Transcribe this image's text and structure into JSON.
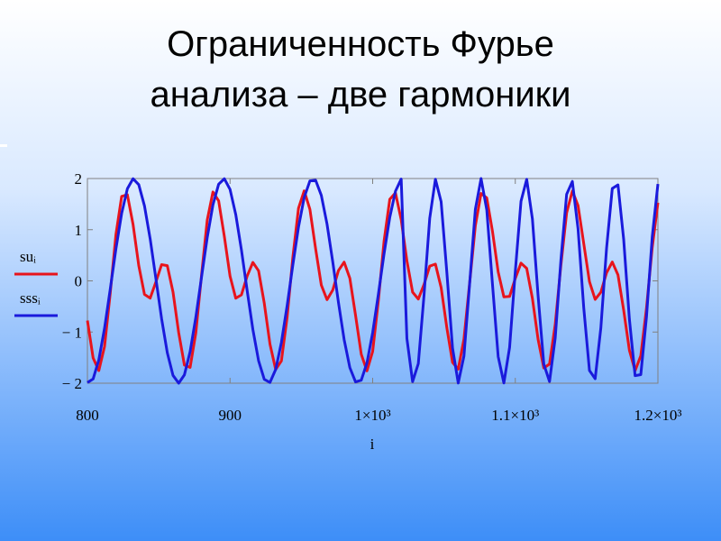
{
  "chart_data": {
    "type": "line",
    "title": [
      "Ограниченность Фурье",
      "анализа – две гармоники"
    ],
    "x_label": "i",
    "x": [
      800,
      804,
      808,
      812,
      816,
      820,
      824,
      828,
      832,
      836,
      840,
      844,
      848,
      852,
      856,
      860,
      864,
      868,
      872,
      876,
      880,
      884,
      888,
      892,
      896,
      900,
      904,
      908,
      912,
      916,
      920,
      924,
      928,
      932,
      936,
      940,
      944,
      948,
      952,
      956,
      960,
      964,
      968,
      972,
      976,
      980,
      984,
      988,
      992,
      996,
      1000,
      1004,
      1008,
      1012,
      1016,
      1020,
      1024,
      1028,
      1032,
      1036,
      1040,
      1044,
      1048,
      1052,
      1056,
      1060,
      1064,
      1068,
      1072,
      1076,
      1080,
      1084,
      1088,
      1092,
      1096,
      1100,
      1104,
      1108,
      1112,
      1116,
      1120,
      1124,
      1128,
      1132,
      1136,
      1140,
      1144,
      1148,
      1152,
      1156,
      1160,
      1164,
      1168,
      1172,
      1176,
      1180,
      1184,
      1188,
      1192,
      1196,
      1200
    ],
    "series": [
      {
        "name": "suᵢ",
        "color": "#e8141c",
        "values": [
          -0.775,
          -1.506,
          -1.753,
          -1.283,
          -0.242,
          0.909,
          1.65,
          1.685,
          1.102,
          0.299,
          -0.264,
          -0.338,
          -0.022,
          0.317,
          0.298,
          -0.216,
          -1.013,
          -1.645,
          -1.691,
          -1.021,
          0.108,
          1.188,
          1.737,
          1.565,
          0.868,
          0.092,
          -0.339,
          -0.273,
          0.094,
          0.361,
          0.197,
          -0.437,
          -1.237,
          -1.732,
          -1.565,
          -0.719,
          0.454,
          1.419,
          1.76,
          1.398,
          0.627,
          -0.083,
          -0.368,
          -0.181,
          0.201,
          0.366,
          0.051,
          -0.674,
          -1.434,
          -1.76,
          -1.378,
          -0.387,
          0.781,
          1.595,
          1.72,
          1.195,
          0.392,
          -0.22,
          -0.355,
          -0.071,
          0.288,
          0.328,
          -0.13,
          -0.915,
          -1.592,
          -1.725,
          -1.137,
          -0.039,
          1.077,
          1.708,
          1.622,
          0.968,
          0.175,
          -0.313,
          -0.304,
          0.046,
          0.347,
          0.245,
          -0.342,
          -1.146,
          -1.703,
          -1.625,
          -0.85,
          0.31,
          1.329,
          1.758,
          1.473,
          0.728,
          -0.014,
          -0.362,
          -0.222,
          0.158,
          0.369,
          0.117,
          -0.574,
          -1.356,
          -1.756,
          -1.463,
          -0.528,
          0.647,
          1.528
        ]
      },
      {
        "name": "sssᵢ",
        "color": "#1a1adc",
        "values": [
          -1.988,
          -1.917,
          -1.543,
          -0.926,
          -0.162,
          0.627,
          1.318,
          1.799,
          1.997,
          1.88,
          1.466,
          0.82,
          0.045,
          -0.737,
          -1.403,
          -1.847,
          -2.0,
          -1.837,
          -1.384,
          -0.712,
          0.072,
          0.845,
          1.484,
          1.889,
          1.996,
          1.788,
          1.297,
          0.602,
          -0.189,
          -0.949,
          -1.56,
          -1.924,
          -1.985,
          -1.732,
          -1.205,
          -0.489,
          0.305,
          1.051,
          1.631,
          1.953,
          1.967,
          1.671,
          1.11,
          0.375,
          -0.42,
          -1.148,
          -1.696,
          -1.975,
          -1.942,
          -1.603,
          -1.011,
          -0.259,
          0.533,
          1.242,
          1.754,
          1.99,
          -1.127,
          -1.97,
          -1.618,
          -0.285,
          1.221,
          1.987,
          1.547,
          0.169,
          -1.312,
          -1.997,
          -1.471,
          -0.052,
          1.398,
          2.0,
          1.389,
          -0.065,
          -1.479,
          -1.996,
          -1.302,
          0.182,
          1.555,
          1.985,
          1.211,
          -0.298,
          -1.627,
          -1.968,
          -1.116,
          0.413,
          1.692,
          1.944,
          1.017,
          -0.527,
          -1.751,
          -1.913,
          -0.915,
          0.639,
          1.805,
          1.876,
          0.809,
          -0.748,
          -1.853,
          -1.832,
          -0.701,
          0.856,
          1.893
        ]
      }
    ],
    "xlim": [
      800,
      1200
    ],
    "xticks": [
      800,
      900,
      {
        "value": 1000,
        "label": "1×10³"
      },
      {
        "value": 1100,
        "label": "1.1×10³"
      },
      {
        "value": 1200,
        "label": "1.2×10³"
      }
    ],
    "ylim": [
      -2,
      2
    ],
    "yticks": [
      {
        "value": -2,
        "label": "− 2"
      },
      {
        "value": -1,
        "label": "− 1"
      },
      0,
      1,
      2
    ],
    "grid": false
  }
}
